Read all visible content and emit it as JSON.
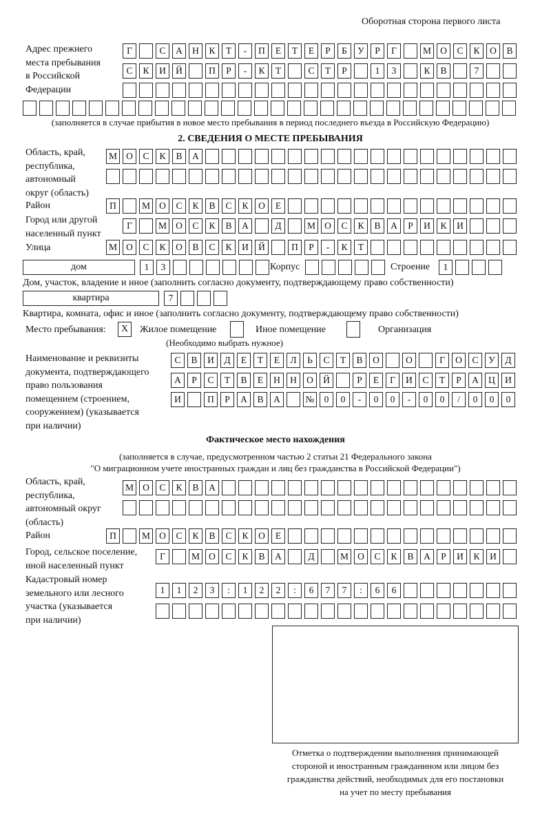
{
  "header": "Оборотная сторона первого листа",
  "prev_address": {
    "label": "Адрес прежнего\nместа пребывания\nв Российской\nФедерации",
    "rows": [
      "Г САНКТ-ПЕТЕРБУРГ МОСКОВ",
      "СКИЙ ПР-КТ СТР 13 КВ 7  ",
      "",
      ""
    ],
    "note": "(заполняется в случае прибытия в новое место пребывания в период последнего въезда в Российскую Федерацию)"
  },
  "stay": {
    "title": "2. СВЕДЕНИЯ О МЕСТЕ ПРЕБЫВАНИЯ",
    "region_label": "Область, край,\nреспублика,\nавтономный\nокруг (область)",
    "region_rows": [
      "МОСКВА",
      ""
    ],
    "district_label": "Район",
    "district": "П МОСКВСКОЕ",
    "city_label": "Город или другой\nнаселенный пункт",
    "city": "Г МОСКВА Д МОСКВАРИКИ",
    "street_label": "Улица",
    "street": "МОСКОВСКИЙ ПР-КТ",
    "house_type": "дом",
    "house_number": "13",
    "korpus_label": "Корпус",
    "korpus": "",
    "building_label": "Строение",
    "building": "1",
    "house_caption": "Дом, участок, владение и иное (заполнить согласно документу, подтверждающему право собственности)",
    "apt_type": "квартира",
    "apt_number": "7",
    "apt_caption": "Квартира, комната, офис и иное (заполнить согласно документу, подтверждающему право собственности)",
    "place_label": "Место пребывания:",
    "options": [
      {
        "label": "Жилое помещение",
        "mark": "X"
      },
      {
        "label": "Иное помещение",
        "mark": ""
      },
      {
        "label": "Организация",
        "mark": ""
      }
    ],
    "options_note": "(Необходимо выбрать нужное)",
    "doc_label": "Наименование и реквизиты\nдокумента, подтверждающего\nправо пользования\nпомещением (строением,\nсооружением) (указывается\nпри наличии)",
    "doc_rows": [
      "СВИДЕТЕЛЬСТВО О ГОСУД",
      "АРСТВЕННОЙ РЕГИСТРАЦИ",
      "И ПРАВА №00-00-00/000"
    ]
  },
  "actual": {
    "title": "Фактическое место нахождения",
    "note1": "(заполняется в случае, предусмотренном частью 2 статьи 21 Федерального закона",
    "note2": "\"О миграционном учете иностранных граждан и лиц без гражданства в Российской Федерации\")",
    "region_label": "Область, край,\nреспублика,\nавтономный округ\n(область)",
    "region_rows": [
      "МОСКВА",
      ""
    ],
    "district_label": "Район",
    "district": "П МОСКВСКОЕ",
    "city_label": "Город, сельское поселение,\nиной населенный пункт",
    "city": "Г МОСКВА Д МОСКВАРИКИ",
    "cadastre_label": "Кадастровый номер\nземельного или лесного\nучастка (указывается\nпри наличии)",
    "cadastre_rows": [
      "1123:122:677:66",
      ""
    ]
  },
  "stamp_caption": "Отметка о подтверждении выполнения принимающей\nстороной и иностранным гражданином или лицом без\nгражданства действий, необходимых для его постановки\nна учет по месту пребывания"
}
